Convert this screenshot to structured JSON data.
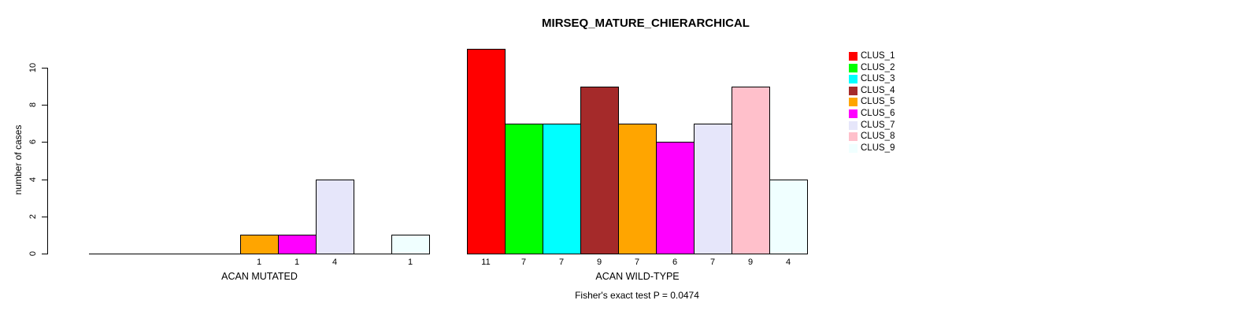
{
  "chart_data": {
    "type": "bar",
    "title": "MIRSEQ_MATURE_CHIERARCHICAL",
    "ylabel": "number of cases",
    "xlabel": "",
    "ylim": [
      0,
      11.35
    ],
    "yticks": [
      0,
      2,
      4,
      6,
      8,
      10
    ],
    "grid": false,
    "legend_position": "right",
    "legend": [
      "CLUS_1",
      "CLUS_2",
      "CLUS_3",
      "CLUS_4",
      "CLUS_5",
      "CLUS_6",
      "CLUS_7",
      "CLUS_8",
      "CLUS_9"
    ],
    "colors": [
      "#ff0000",
      "#00ff00",
      "#00ffff",
      "#a52a2a",
      "#ffa500",
      "#ff00ff",
      "#e6e6fa",
      "#ffc0cb",
      "#f0ffff"
    ],
    "bar_border_color": "#000000",
    "value_labels": "nonzero",
    "groups": [
      {
        "label": "ACAN MUTATED",
        "values": [
          0,
          0,
          0,
          0,
          1,
          1,
          4,
          0,
          1
        ]
      },
      {
        "label": "ACAN WILD-TYPE",
        "values": [
          11,
          7,
          7,
          9,
          7,
          6,
          7,
          9,
          4
        ]
      }
    ],
    "annotation": "Fisher's exact test P = 0.0474"
  }
}
